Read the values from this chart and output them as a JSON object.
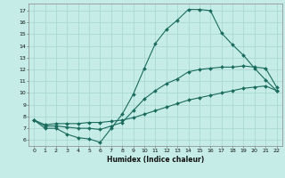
{
  "xlabel": "Humidex (Indice chaleur)",
  "ylabel": "",
  "background_color": "#c5ece6",
  "grid_color": "#aad8d2",
  "line_color": "#1a6b5e",
  "xlim": [
    -0.5,
    22.5
  ],
  "ylim": [
    5.5,
    17.6
  ],
  "xticks": [
    0,
    1,
    2,
    3,
    4,
    5,
    6,
    7,
    8,
    9,
    10,
    11,
    12,
    13,
    14,
    15,
    16,
    17,
    18,
    19,
    20,
    21,
    22
  ],
  "yticks": [
    6,
    7,
    8,
    9,
    10,
    11,
    12,
    13,
    14,
    15,
    16,
    17
  ],
  "lines": [
    {
      "x": [
        0,
        1,
        2,
        3,
        4,
        5,
        6,
        7,
        8,
        9,
        10,
        11,
        12,
        13,
        14,
        15,
        16,
        17,
        18,
        19,
        20,
        21,
        22
      ],
      "y": [
        7.7,
        7.0,
        7.0,
        6.5,
        6.2,
        6.1,
        5.8,
        7.0,
        8.2,
        9.9,
        12.1,
        14.2,
        15.4,
        16.2,
        17.1,
        17.1,
        17.0,
        15.1,
        14.1,
        13.2,
        12.1,
        11.1,
        10.2
      ]
    },
    {
      "x": [
        0,
        1,
        2,
        3,
        4,
        5,
        6,
        7,
        8,
        9,
        10,
        11,
        12,
        13,
        14,
        15,
        16,
        17,
        18,
        19,
        20,
        21,
        22
      ],
      "y": [
        7.7,
        7.2,
        7.2,
        7.1,
        7.0,
        7.0,
        6.9,
        7.2,
        7.5,
        8.5,
        9.5,
        10.2,
        10.8,
        11.2,
        11.8,
        12.0,
        12.1,
        12.2,
        12.2,
        12.3,
        12.2,
        12.1,
        10.5
      ]
    },
    {
      "x": [
        0,
        1,
        2,
        3,
        4,
        5,
        6,
        7,
        8,
        9,
        10,
        11,
        12,
        13,
        14,
        15,
        16,
        17,
        18,
        19,
        20,
        21,
        22
      ],
      "y": [
        7.7,
        7.3,
        7.4,
        7.4,
        7.4,
        7.5,
        7.5,
        7.6,
        7.7,
        7.9,
        8.2,
        8.5,
        8.8,
        9.1,
        9.4,
        9.6,
        9.8,
        10.0,
        10.2,
        10.4,
        10.5,
        10.6,
        10.2
      ]
    }
  ],
  "xlabel_fontsize": 5.5,
  "tick_fontsize": 4.5,
  "marker_size": 2.0,
  "linewidth": 0.8
}
